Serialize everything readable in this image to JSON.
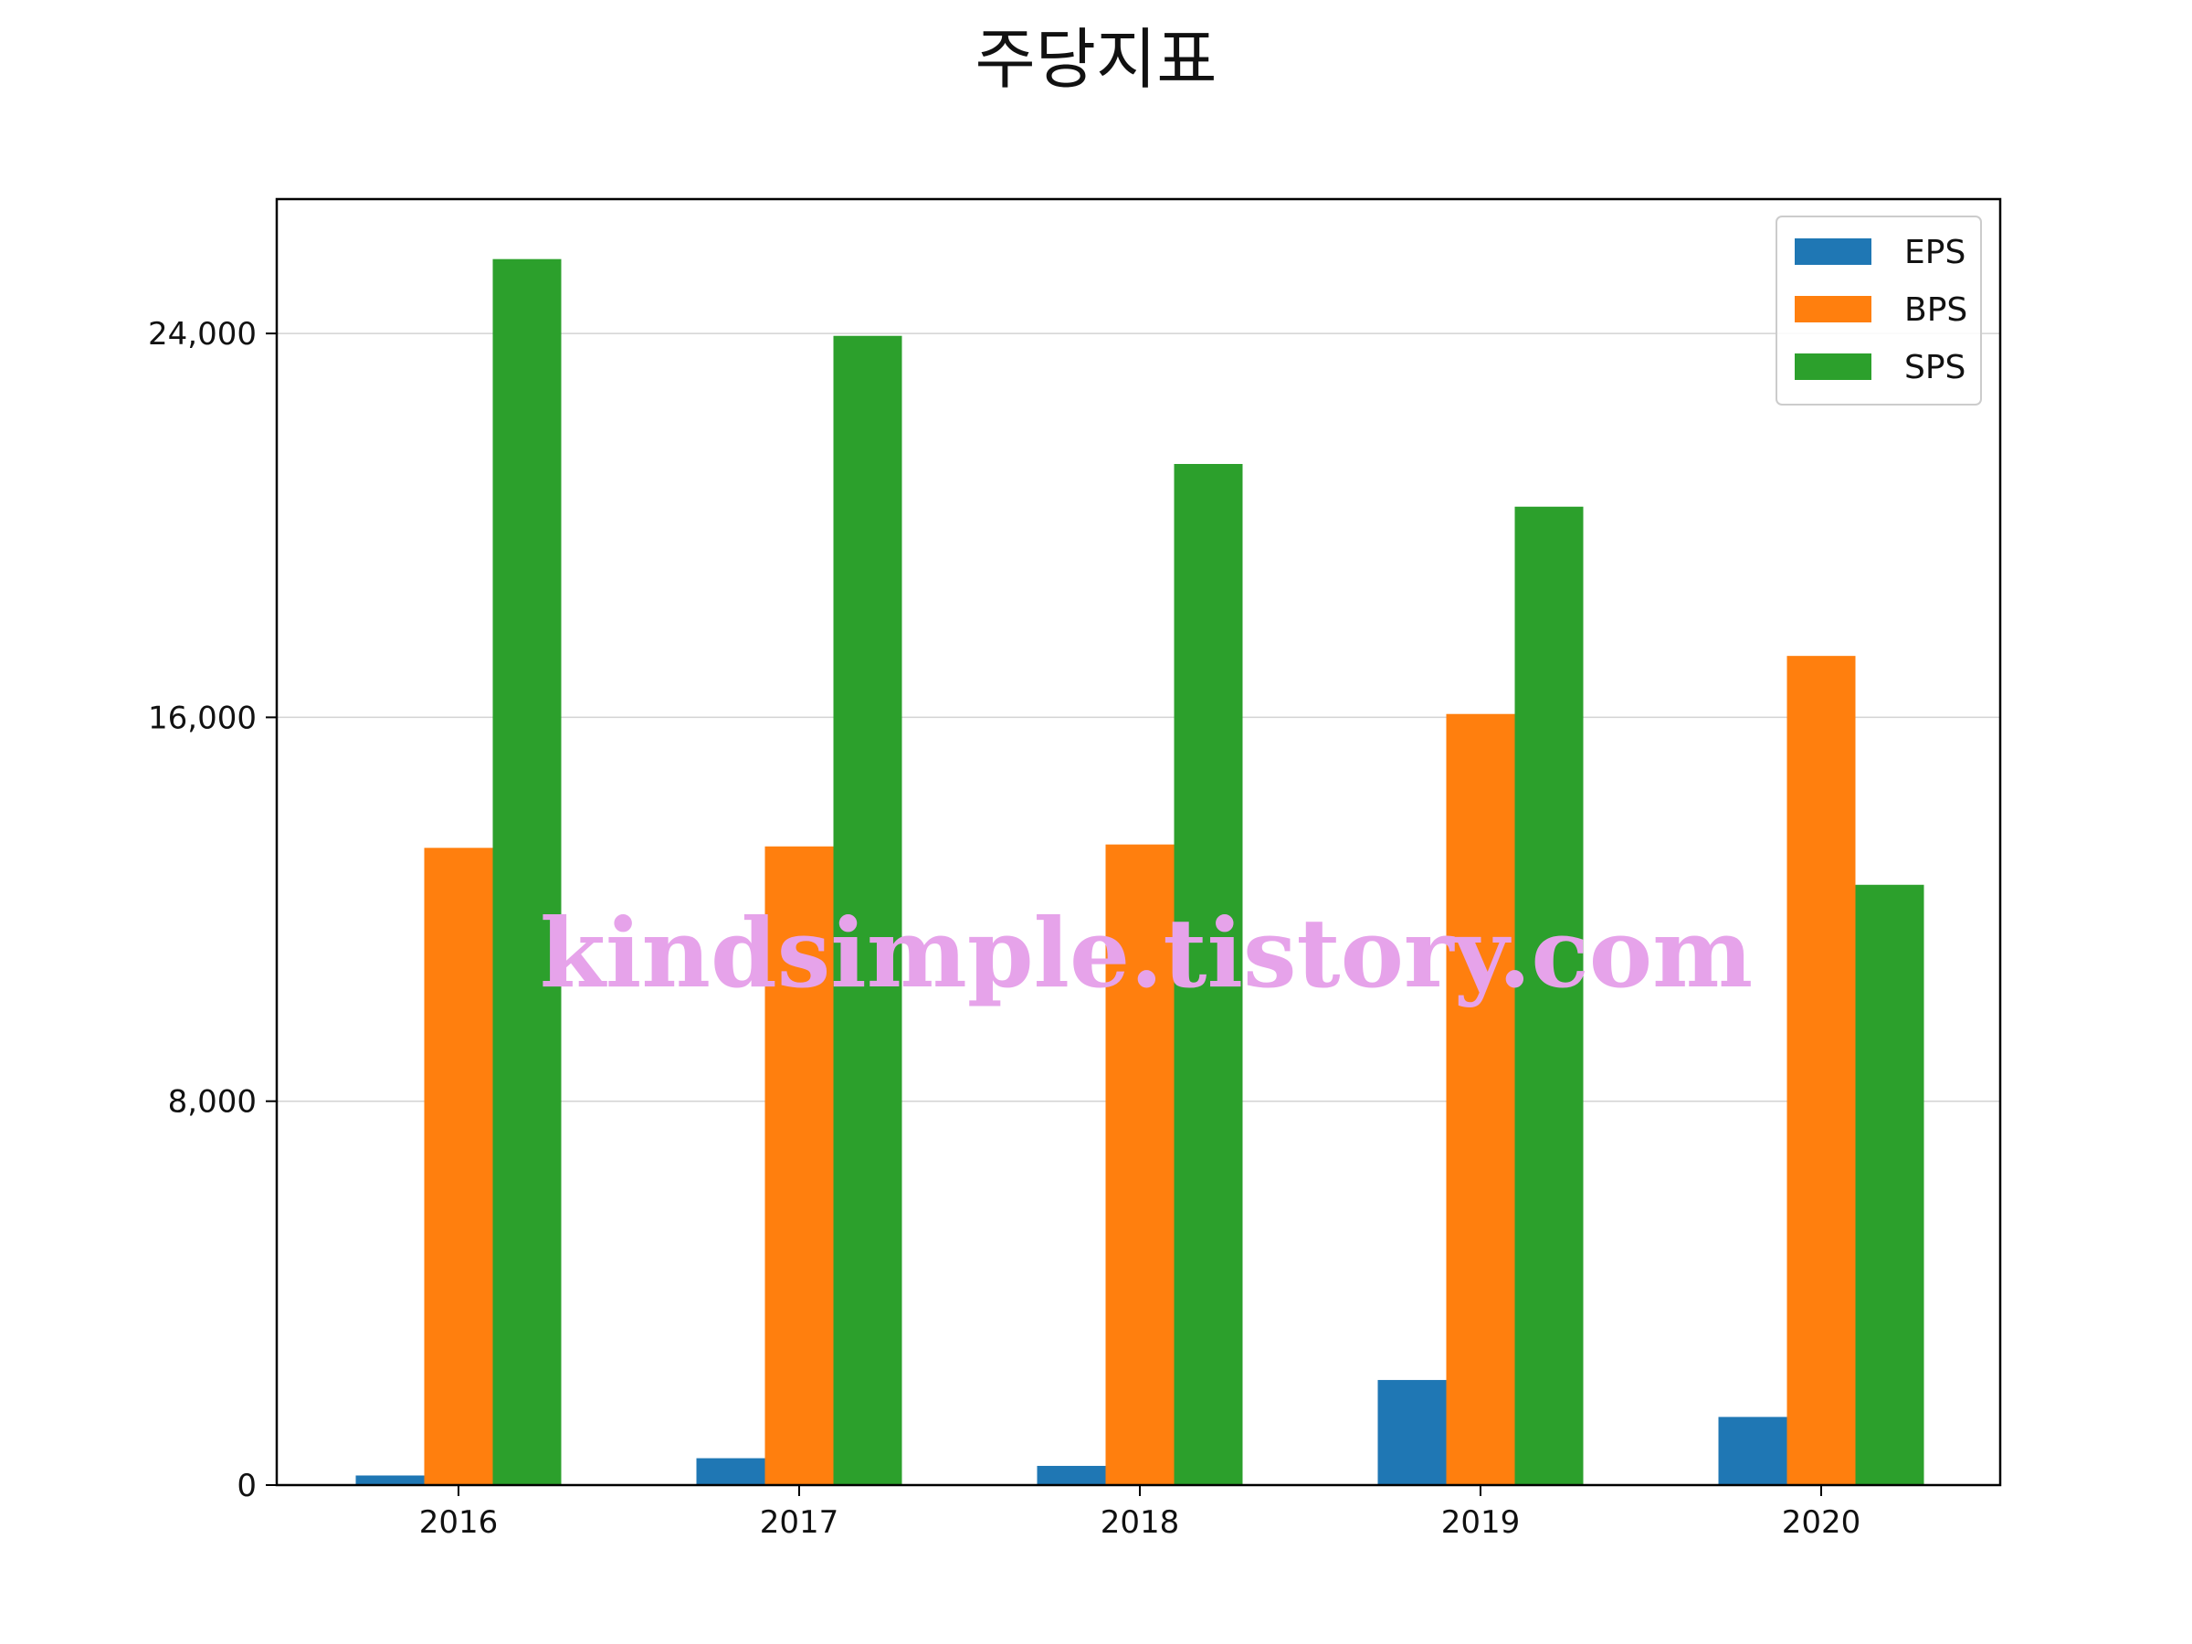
{
  "chart_data": {
    "type": "bar",
    "title": "주당지표",
    "categories": [
      "2016",
      "2017",
      "2018",
      "2019",
      "2020"
    ],
    "series": [
      {
        "name": "EPS",
        "color": "#1f77b4",
        "values": [
          200,
          560,
          400,
          2190,
          1420
        ]
      },
      {
        "name": "BPS",
        "color": "#ff7f0e",
        "values": [
          13280,
          13310,
          13350,
          16070,
          17280
        ]
      },
      {
        "name": "SPS",
        "color": "#2ca02c",
        "values": [
          25550,
          23950,
          21280,
          20390,
          12510
        ]
      }
    ],
    "yticks": [
      0,
      8000,
      16000,
      24000
    ],
    "ytick_labels": [
      "0",
      "8,000",
      "16,000",
      "24,000"
    ],
    "ylim": [
      0,
      26800
    ],
    "xlabel": "",
    "ylabel": "",
    "grid": "horizontal",
    "legend": "top-right"
  },
  "watermark": "kindsimple.tistory.com"
}
